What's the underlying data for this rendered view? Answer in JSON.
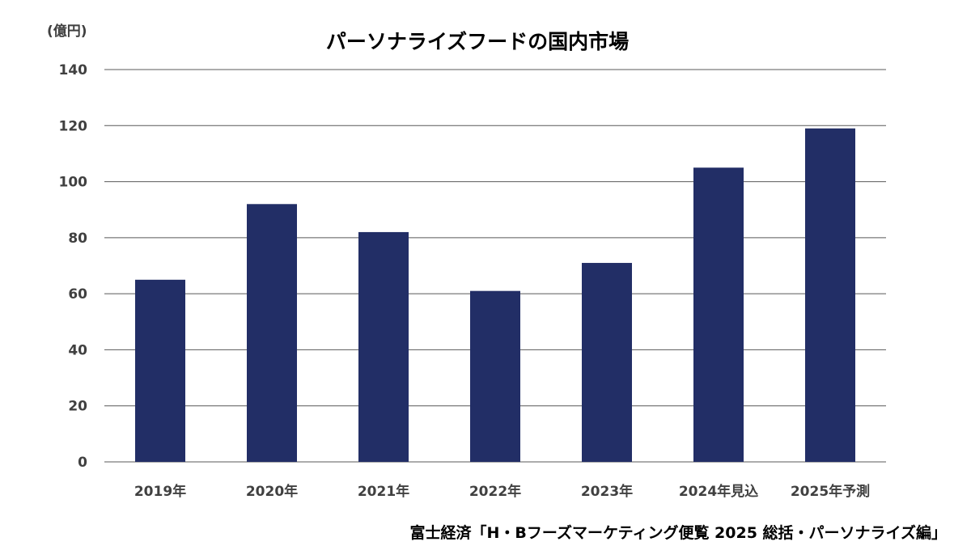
{
  "unit_label": "(億円)",
  "source": "富士経済「H・Bフーズマーケティング便覧 2025 総括・パーソナライズ編」",
  "colors": {
    "bar": "#222e66",
    "gridline": "#595959",
    "axis_text": "#404040"
  },
  "chart_data": {
    "type": "bar",
    "title": "パーソナライズフードの国内市場",
    "xlabel": "",
    "ylabel": "",
    "categories": [
      "2019年",
      "2020年",
      "2021年",
      "2022年",
      "2023年",
      "2024年見込",
      "2025年予測"
    ],
    "values": [
      65,
      92,
      82,
      61,
      71,
      105,
      119
    ],
    "ylim": [
      0,
      140
    ],
    "yticks": [
      0,
      20,
      40,
      60,
      80,
      100,
      120,
      140
    ],
    "grid": true,
    "legend": "none"
  }
}
